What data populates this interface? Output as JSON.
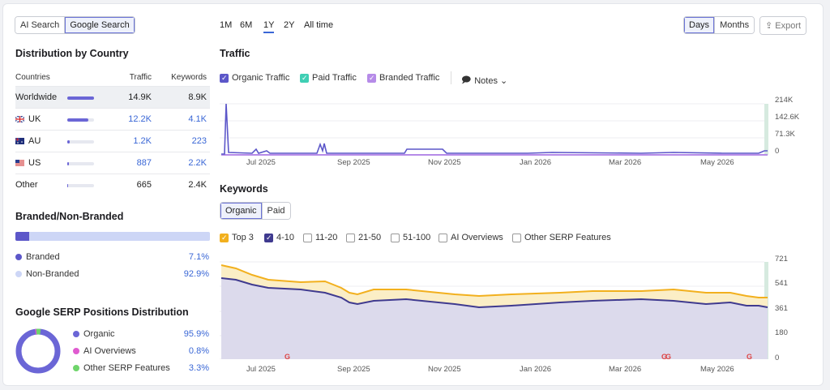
{
  "toggle": {
    "ai": "AI Search",
    "google": "Google Search"
  },
  "timeframes": [
    "1M",
    "6M",
    "1Y",
    "2Y",
    "All time"
  ],
  "view": {
    "days": "Days",
    "months": "Months",
    "export": "Export"
  },
  "country": {
    "title": "Distribution by Country",
    "headers": {
      "c": "Countries",
      "t": "Traffic",
      "k": "Keywords"
    },
    "rows": [
      {
        "name": "Worldwide",
        "traffic": "14.9K",
        "keywords": "8.9K",
        "share": 1.0
      },
      {
        "name": "UK",
        "traffic": "12.2K",
        "keywords": "4.1K",
        "share": 0.8
      },
      {
        "name": "AU",
        "traffic": "1.2K",
        "keywords": "223",
        "share": 0.08
      },
      {
        "name": "US",
        "traffic": "887",
        "keywords": "2.2K",
        "share": 0.06
      },
      {
        "name": "Other",
        "traffic": "665",
        "keywords": "2.4K",
        "share": 0.045
      }
    ]
  },
  "branded": {
    "title": "Branded/Non-Branded",
    "branded_label": "Branded",
    "branded_pct": "7.1%",
    "non_label": "Non-Branded",
    "non_pct": "92.9%",
    "branded_share": 0.071
  },
  "serp": {
    "title": "Google SERP Positions Distribution",
    "items": [
      {
        "label": "Organic",
        "pct": "95.9%",
        "color": "#6b66d6"
      },
      {
        "label": "AI Overviews",
        "pct": "0.8%",
        "color": "#e05bd0"
      },
      {
        "label": "Other SERP Features",
        "pct": "3.3%",
        "color": "#6fd56b"
      }
    ]
  },
  "traffic": {
    "title": "Traffic",
    "legend": {
      "organic": "Organic Traffic",
      "paid": "Paid Traffic",
      "branded": "Branded Traffic",
      "notes": "Notes"
    },
    "yticks": [
      "214K",
      "142.6K",
      "71.3K",
      "0"
    ]
  },
  "keywords": {
    "title": "Keywords",
    "tabs": {
      "organic": "Organic",
      "paid": "Paid"
    },
    "filters": [
      "Top 3",
      "4-10",
      "11-20",
      "21-50",
      "51-100",
      "AI Overviews",
      "Other SERP Features"
    ],
    "yticks": [
      "721",
      "541",
      "361",
      "180",
      "0"
    ]
  },
  "xticks": [
    "Jul 2025",
    "Sep 2025",
    "Nov 2025",
    "Jan 2026",
    "Mar 2026",
    "May 2026"
  ],
  "colors": {
    "organic": "#5c57c9",
    "paid": "#3fcfb4",
    "branded": "#b68be8",
    "top3": "#f2b01e",
    "accent": "#3a67d6"
  }
}
